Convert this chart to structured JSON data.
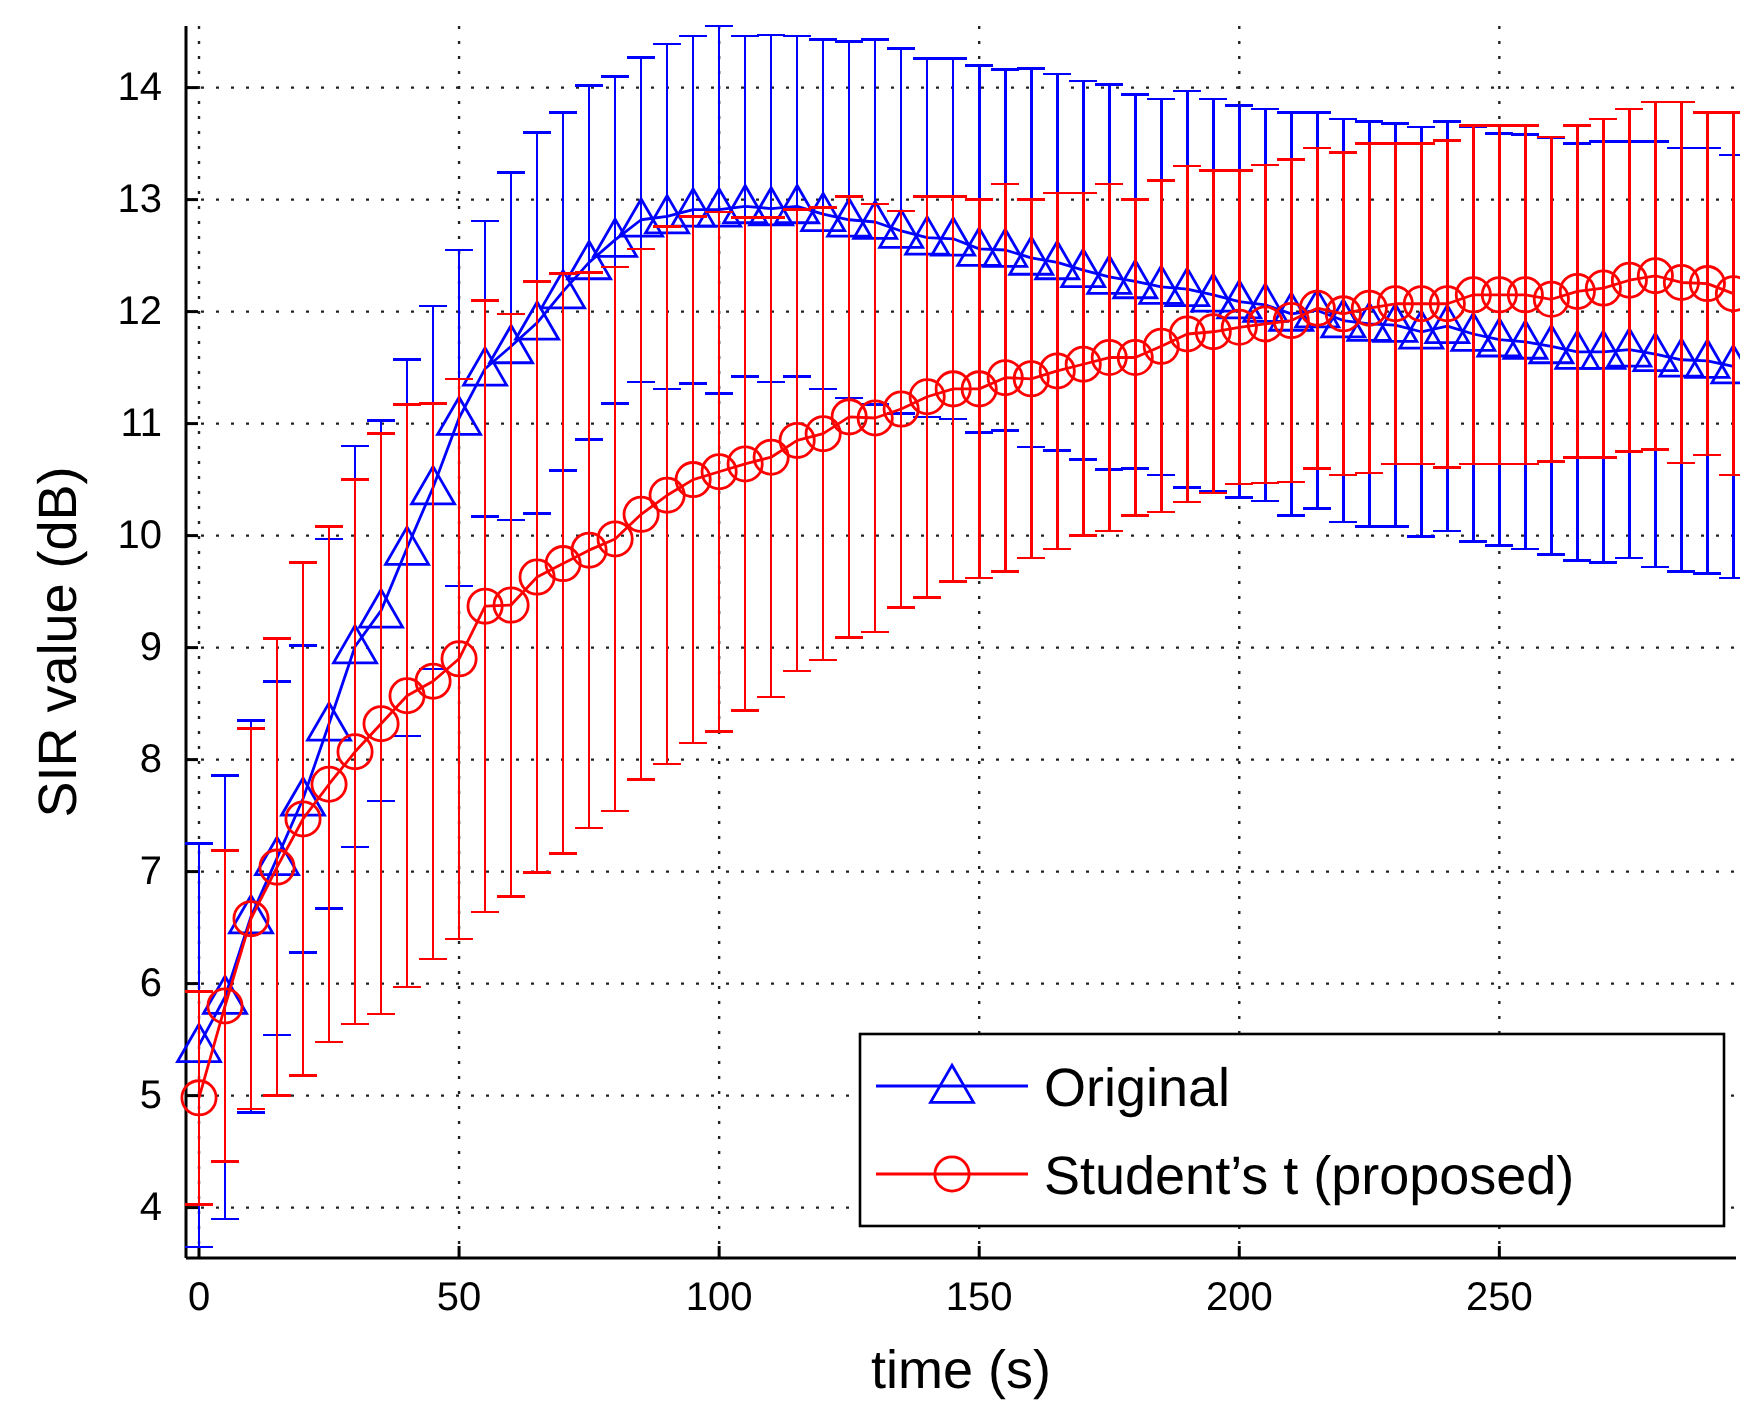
{
  "chart_data": {
    "type": "line",
    "xlabel": "time (s)",
    "ylabel": "SIR value (dB)",
    "x": [
      0,
      5,
      10,
      15,
      20,
      25,
      30,
      35,
      40,
      45,
      50,
      55,
      60,
      65,
      70,
      75,
      80,
      85,
      90,
      95,
      100,
      105,
      110,
      115,
      120,
      125,
      130,
      135,
      140,
      145,
      150,
      155,
      160,
      165,
      170,
      175,
      180,
      185,
      190,
      195,
      200,
      205,
      210,
      215,
      220,
      225,
      230,
      235,
      240,
      245,
      250,
      255,
      260,
      265,
      270,
      275,
      280,
      285,
      290,
      295
    ],
    "xlim": [
      -2.5,
      295.5
    ],
    "xticks": [
      0,
      50,
      100,
      150,
      200,
      250
    ],
    "ylim": [
      3.55,
      14.55
    ],
    "yticks": [
      4,
      5,
      6,
      7,
      8,
      9,
      10,
      11,
      12,
      13,
      14
    ],
    "grid": true,
    "legend": "bottom right",
    "line_style": "solid",
    "series": [
      {
        "name": "Original",
        "color": "#0000ff",
        "marker": "triangle",
        "values": [
          5.45,
          5.88,
          6.6,
          7.12,
          7.65,
          8.32,
          9.01,
          9.33,
          9.89,
          10.43,
          11.05,
          11.49,
          11.69,
          11.9,
          12.18,
          12.44,
          12.64,
          12.82,
          12.85,
          12.91,
          12.91,
          12.94,
          12.92,
          12.94,
          12.87,
          12.82,
          12.8,
          12.72,
          12.66,
          12.65,
          12.56,
          12.55,
          12.48,
          12.44,
          12.37,
          12.31,
          12.27,
          12.22,
          12.2,
          12.15,
          12.09,
          12.06,
          11.98,
          12.01,
          11.92,
          11.89,
          11.88,
          11.82,
          11.87,
          11.8,
          11.75,
          11.73,
          11.69,
          11.64,
          11.64,
          11.66,
          11.62,
          11.57,
          11.56,
          11.51
        ],
        "errors": [
          1.8,
          1.98,
          1.75,
          1.58,
          1.37,
          1.65,
          1.79,
          1.7,
          1.68,
          1.62,
          1.5,
          1.32,
          1.55,
          1.7,
          1.6,
          1.58,
          1.46,
          1.45,
          1.54,
          1.55,
          1.64,
          1.52,
          1.55,
          1.52,
          1.56,
          1.59,
          1.63,
          1.63,
          1.6,
          1.61,
          1.64,
          1.61,
          1.69,
          1.68,
          1.69,
          1.72,
          1.67,
          1.68,
          1.77,
          1.75,
          1.75,
          1.75,
          1.8,
          1.77,
          1.8,
          1.81,
          1.8,
          1.83,
          1.83,
          1.85,
          1.84,
          1.85,
          1.86,
          1.86,
          1.88,
          1.86,
          1.9,
          1.89,
          1.9,
          1.89
        ]
      },
      {
        "name": "Student’s t (proposed)",
        "color": "#ff0000",
        "marker": "circle",
        "values": [
          4.98,
          5.8,
          6.58,
          7.04,
          7.47,
          7.78,
          8.07,
          8.32,
          8.57,
          8.7,
          8.9,
          9.37,
          9.38,
          9.63,
          9.75,
          9.87,
          9.97,
          10.19,
          10.36,
          10.5,
          10.57,
          10.64,
          10.7,
          10.85,
          10.91,
          11.06,
          11.05,
          11.13,
          11.24,
          11.31,
          11.31,
          11.41,
          11.4,
          11.47,
          11.53,
          11.59,
          11.59,
          11.69,
          11.8,
          11.82,
          11.86,
          11.89,
          11.92,
          12.03,
          11.98,
          12.03,
          12.07,
          12.07,
          12.07,
          12.15,
          12.15,
          12.15,
          12.11,
          12.18,
          12.21,
          12.28,
          12.32,
          12.26,
          12.25,
          12.16
        ],
        "errors": [
          0.95,
          1.39,
          1.7,
          2.04,
          2.29,
          2.3,
          2.43,
          2.59,
          2.6,
          2.48,
          2.5,
          2.73,
          2.6,
          2.64,
          2.59,
          2.48,
          2.43,
          2.37,
          2.4,
          2.35,
          2.32,
          2.2,
          2.14,
          2.06,
          2.02,
          1.97,
          1.91,
          1.77,
          1.79,
          1.72,
          1.69,
          1.73,
          1.6,
          1.59,
          1.53,
          1.55,
          1.41,
          1.48,
          1.5,
          1.44,
          1.4,
          1.42,
          1.44,
          1.43,
          1.44,
          1.47,
          1.43,
          1.43,
          1.46,
          1.51,
          1.51,
          1.51,
          1.45,
          1.48,
          1.51,
          1.53,
          1.55,
          1.61,
          1.53,
          1.62
        ]
      }
    ]
  }
}
